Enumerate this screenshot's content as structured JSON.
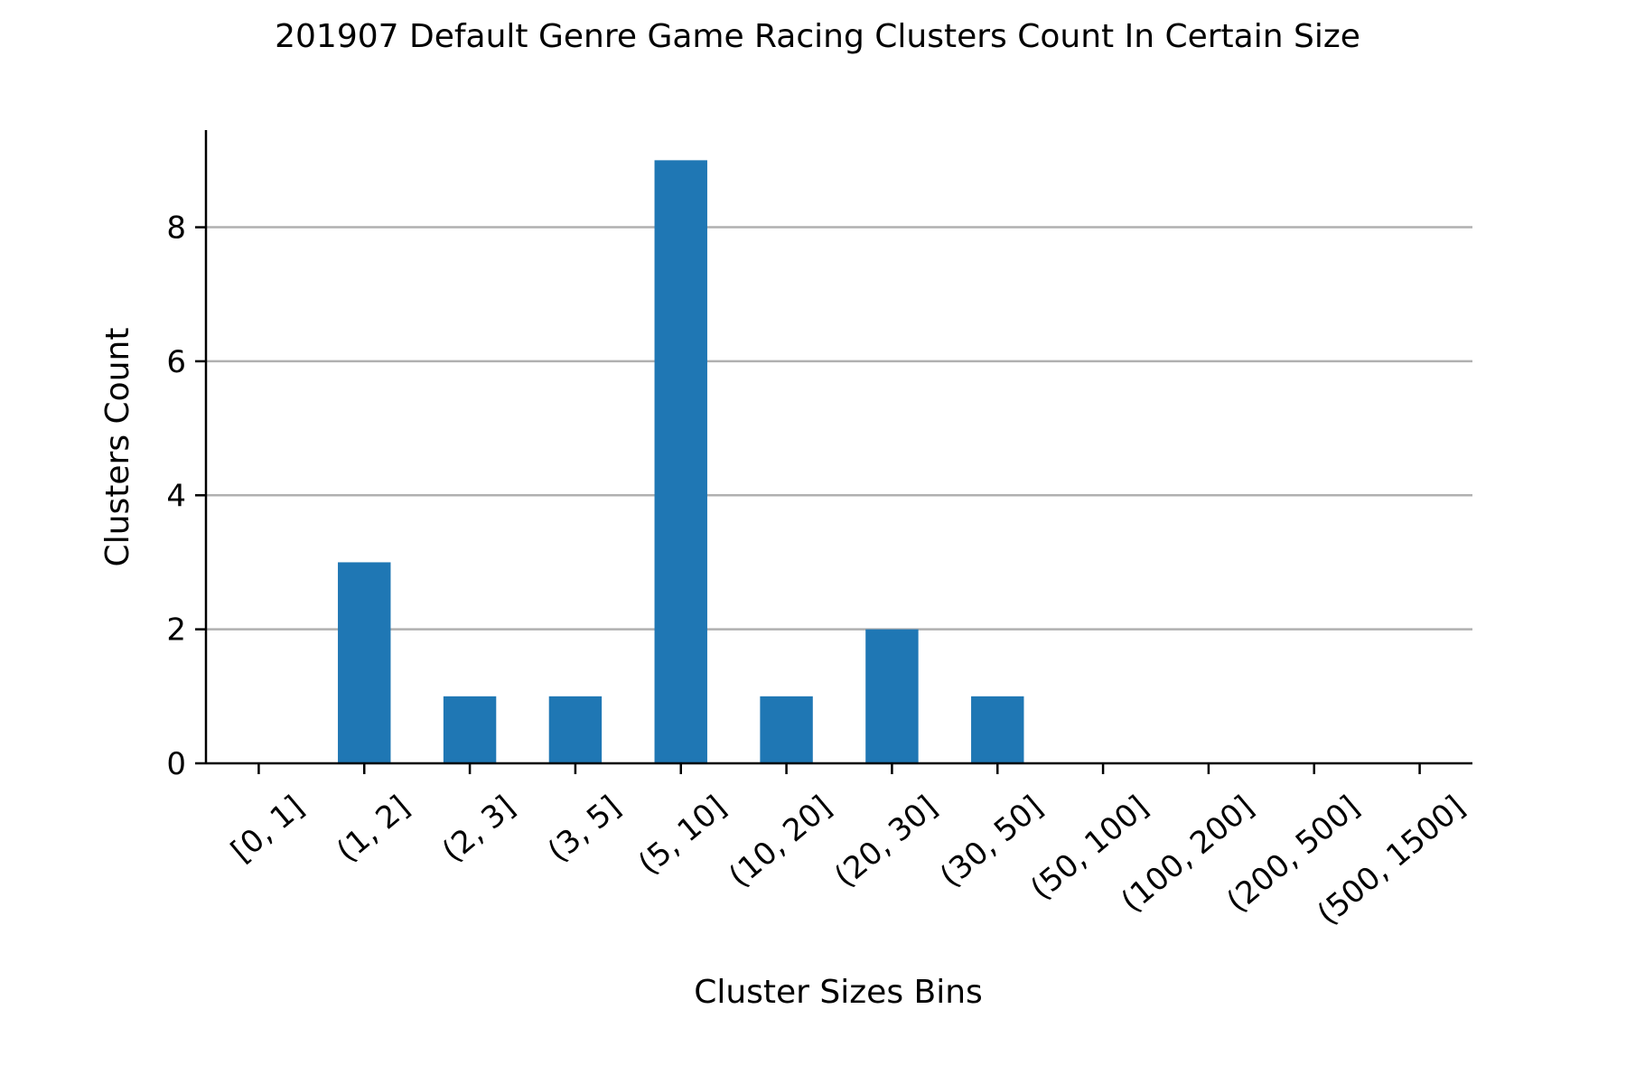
{
  "chart_data": {
    "type": "bar",
    "title": "201907 Default Genre Game Racing Clusters Count In Certain Size",
    "xlabel": "Cluster Sizes Bins",
    "ylabel": "Clusters Count",
    "categories": [
      "[0, 1]",
      "(1, 2]",
      "(2, 3]",
      "(3, 5]",
      "(5, 10]",
      "(10, 20]",
      "(20, 30]",
      "(30, 50]",
      "(50, 100]",
      "(100, 200]",
      "(200, 500]",
      "(500, 1500]"
    ],
    "values": [
      0,
      3,
      1,
      1,
      9,
      1,
      2,
      1,
      0,
      0,
      0,
      0
    ],
    "ylim": [
      0,
      9.45
    ],
    "yticks": [
      0,
      2,
      4,
      6,
      8
    ],
    "grid": "horizontal",
    "bar_color": "#1f77b4"
  }
}
